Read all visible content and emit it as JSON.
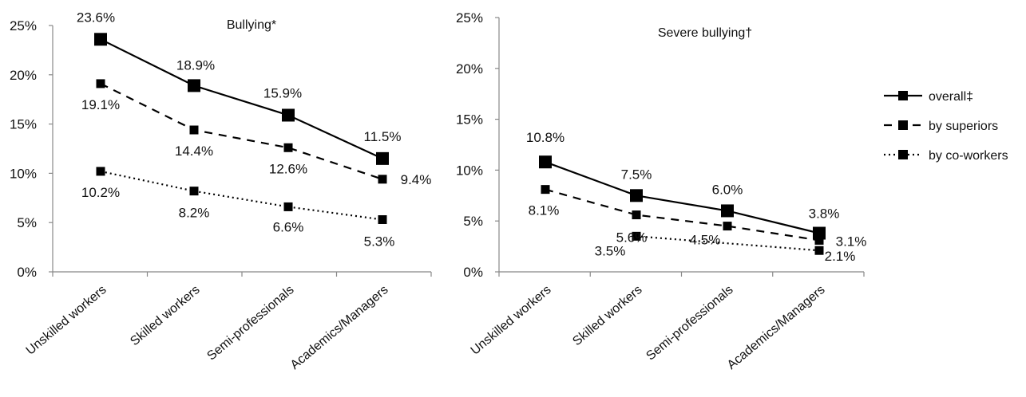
{
  "chart_data": [
    {
      "type": "line",
      "title": "Bullying*",
      "categories": [
        "Unskilled workers",
        "Skilled workers",
        "Semi-professionals",
        "Academics/Managers"
      ],
      "yticks": [
        "0%",
        "5%",
        "10%",
        "15%",
        "20%",
        "25%"
      ],
      "ylim": [
        0,
        25
      ],
      "ylabel": "",
      "xlabel": "",
      "series": [
        {
          "values": [
            23.6,
            18.9,
            15.9,
            11.5
          ],
          "labels": [
            "23.6%",
            "18.9%",
            "15.9%",
            "11.5%"
          ]
        },
        {
          "values": [
            19.1,
            14.4,
            12.6,
            9.4
          ],
          "labels": [
            "19.1%",
            "14.4%",
            "12.6%",
            "9.4%"
          ]
        },
        {
          "values": [
            10.2,
            8.2,
            6.6,
            5.3
          ],
          "labels": [
            "10.2%",
            "8.2%",
            "6.6%",
            "5.3%"
          ]
        }
      ],
      "grid": false
    },
    {
      "type": "line",
      "title": "Severe bullying†",
      "categories": [
        "Unskilled workers",
        "Skilled workers",
        "Semi-professionals",
        "Academics/Managers"
      ],
      "yticks": [
        "0%",
        "5%",
        "10%",
        "15%",
        "20%",
        "25%"
      ],
      "ylim": [
        0,
        25
      ],
      "ylabel": "",
      "xlabel": "",
      "series": [
        {
          "values": [
            10.8,
            7.5,
            6.0,
            3.8
          ],
          "labels": [
            "10.8%",
            "7.5%",
            "6.0%",
            "3.8%"
          ]
        },
        {
          "values": [
            8.1,
            5.6,
            4.5,
            3.1
          ],
          "labels": [
            "8.1%",
            "5.6%",
            "4.5%",
            "3.1%"
          ]
        },
        {
          "values": [
            null,
            3.5,
            null,
            2.1
          ],
          "labels": [
            "",
            "3.5%",
            "",
            "2.1%"
          ]
        }
      ],
      "grid": false
    }
  ],
  "legend": {
    "placement": "right",
    "items": [
      {
        "label": "overall‡",
        "style": "solid"
      },
      {
        "label": "by superiors",
        "style": "dashed"
      },
      {
        "label": "by co-workers",
        "style": "dotted"
      }
    ]
  },
  "colors": {
    "line": "#000000",
    "axis": "#888888",
    "text": "#111111"
  }
}
